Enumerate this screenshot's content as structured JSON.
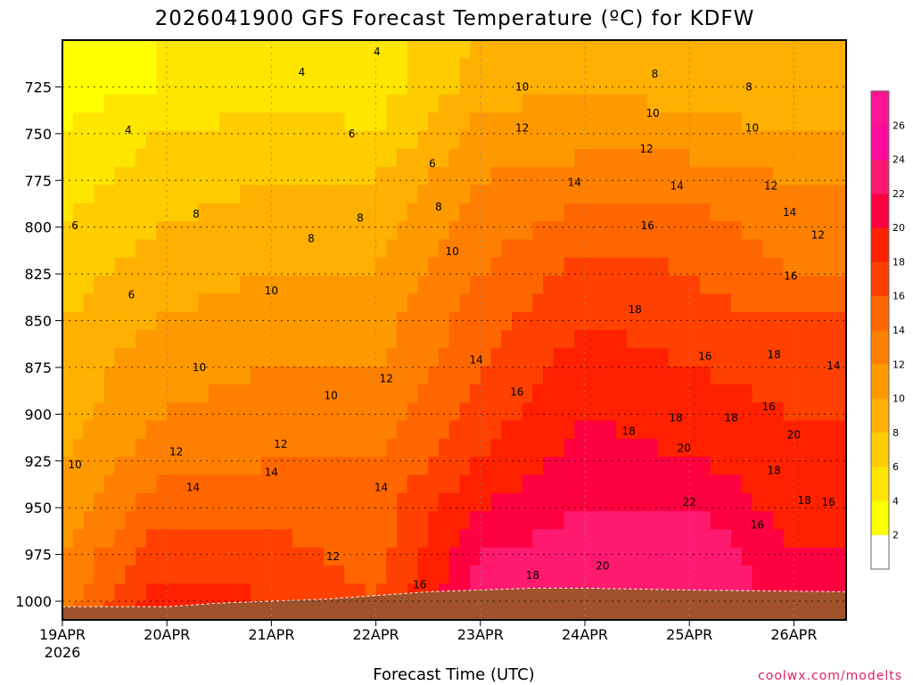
{
  "chart_data": {
    "type": "heatmap",
    "title": "2026041900 GFS Forecast Temperature (ºC) for KDFW",
    "xlabel": "Forecast Time (UTC)",
    "ylabel": "",
    "credit": "coolwx.com/modelts",
    "x_ticks": [
      {
        "label": "19APR",
        "sub": "2026",
        "day": 0
      },
      {
        "label": "20APR",
        "sub": "",
        "day": 1
      },
      {
        "label": "21APR",
        "sub": "",
        "day": 2
      },
      {
        "label": "22APR",
        "sub": "",
        "day": 3
      },
      {
        "label": "23APR",
        "sub": "",
        "day": 4
      },
      {
        "label": "24APR",
        "sub": "",
        "day": 5
      },
      {
        "label": "25APR",
        "sub": "",
        "day": 6
      },
      {
        "label": "26APR",
        "sub": "",
        "day": 7
      }
    ],
    "xlim_days": [
      0,
      7.5
    ],
    "y_ticks": [
      725,
      750,
      775,
      800,
      825,
      850,
      875,
      900,
      925,
      950,
      975,
      1000
    ],
    "ylim_hpa": [
      700,
      1010
    ],
    "y_reversed": true,
    "colorbar": {
      "levels": [
        2,
        4,
        6,
        8,
        10,
        12,
        14,
        16,
        18,
        20,
        22,
        24,
        26
      ],
      "colors": [
        "#ffffff",
        "#ffff00",
        "#ffe600",
        "#ffcc00",
        "#ffb000",
        "#ff9900",
        "#ff8000",
        "#ff6600",
        "#ff4000",
        "#ff2000",
        "#ff0040",
        "#ff1a70",
        "#ff0a9a",
        "#ff1493"
      ]
    },
    "surface_pressure": [
      1003,
      1003,
      1003,
      1001,
      1000,
      999,
      997,
      995,
      994,
      993,
      993,
      994,
      995
    ],
    "surface_days": [
      0,
      0.6,
      1.0,
      1.5,
      2.0,
      2.5,
      3.0,
      3.5,
      4.0,
      4.5,
      5.0,
      6.0,
      7.5
    ],
    "temperature_profile": {
      "pressure_hpa": [
        700,
        725,
        750,
        775,
        800,
        825,
        850,
        875,
        900,
        925,
        950,
        975,
        1000
      ],
      "series": [
        {
          "day": 0.0,
          "values": [
            3,
            3,
            4,
            5,
            6,
            7,
            8,
            9,
            9,
            10,
            11,
            12,
            13
          ]
        },
        {
          "day": 0.9,
          "values": [
            4,
            4,
            6,
            7,
            8,
            9,
            10,
            11,
            12,
            13,
            15,
            17,
            19
          ]
        },
        {
          "day": 2.0,
          "values": [
            4,
            5,
            7,
            8,
            9,
            10,
            11,
            12,
            13,
            14,
            15,
            17,
            18
          ]
        },
        {
          "day": 3.0,
          "values": [
            5,
            5,
            6,
            8,
            9,
            10,
            11,
            12,
            13,
            14,
            15,
            15,
            16
          ]
        },
        {
          "day": 4.0,
          "values": [
            8,
            9,
            11,
            12,
            13,
            14,
            15,
            16,
            17,
            18,
            20,
            22,
            23
          ]
        },
        {
          "day": 5.0,
          "values": [
            9,
            10,
            11,
            13,
            15,
            17,
            18,
            19,
            20,
            21,
            22,
            23,
            23
          ]
        },
        {
          "day": 6.0,
          "values": [
            8,
            9,
            11,
            13,
            15,
            16,
            17,
            18,
            19,
            20,
            22,
            24,
            24
          ]
        },
        {
          "day": 7.0,
          "values": [
            8,
            8,
            10,
            12,
            13,
            14,
            16,
            17,
            18,
            19,
            19,
            20,
            21
          ]
        }
      ]
    },
    "contour_labels": [
      {
        "text": "4",
        "day": 0.63,
        "p": 750
      },
      {
        "text": "4",
        "day": 2.29,
        "p": 719
      },
      {
        "text": "4",
        "day": 3.01,
        "p": 708
      },
      {
        "text": "6",
        "day": 2.77,
        "p": 752
      },
      {
        "text": "6",
        "day": 3.54,
        "p": 768
      },
      {
        "text": "6",
        "day": 0.12,
        "p": 801
      },
      {
        "text": "6",
        "day": 0.66,
        "p": 838
      },
      {
        "text": "8",
        "day": 1.28,
        "p": 795
      },
      {
        "text": "8",
        "day": 2.38,
        "p": 808
      },
      {
        "text": "8",
        "day": 2.85,
        "p": 797
      },
      {
        "text": "8",
        "day": 3.6,
        "p": 791
      },
      {
        "text": "8",
        "day": 5.67,
        "p": 720
      },
      {
        "text": "8",
        "day": 6.57,
        "p": 727
      },
      {
        "text": "10",
        "day": 4.4,
        "p": 727
      },
      {
        "text": "10",
        "day": 5.65,
        "p": 741
      },
      {
        "text": "10",
        "day": 6.6,
        "p": 749
      },
      {
        "text": "10",
        "day": 3.73,
        "p": 815
      },
      {
        "text": "10",
        "day": 2.0,
        "p": 836
      },
      {
        "text": "10",
        "day": 1.31,
        "p": 877
      },
      {
        "text": "10",
        "day": 2.57,
        "p": 892
      },
      {
        "text": "10",
        "day": 0.12,
        "p": 929
      },
      {
        "text": "12",
        "day": 4.4,
        "p": 749
      },
      {
        "text": "12",
        "day": 5.59,
        "p": 760
      },
      {
        "text": "12",
        "day": 6.78,
        "p": 780
      },
      {
        "text": "12",
        "day": 7.23,
        "p": 806
      },
      {
        "text": "12",
        "day": 3.1,
        "p": 883
      },
      {
        "text": "12",
        "day": 2.09,
        "p": 918
      },
      {
        "text": "12",
        "day": 1.09,
        "p": 922
      },
      {
        "text": "12",
        "day": 2.59,
        "p": 978
      },
      {
        "text": "14",
        "day": 4.9,
        "p": 778
      },
      {
        "text": "14",
        "day": 5.88,
        "p": 780
      },
      {
        "text": "14",
        "day": 6.96,
        "p": 794
      },
      {
        "text": "14",
        "day": 3.96,
        "p": 873
      },
      {
        "text": "14",
        "day": 7.38,
        "p": 876
      },
      {
        "text": "14",
        "day": 2.0,
        "p": 933
      },
      {
        "text": "14",
        "day": 1.25,
        "p": 941
      },
      {
        "text": "14",
        "day": 3.05,
        "p": 941
      },
      {
        "text": "16",
        "day": 5.6,
        "p": 801
      },
      {
        "text": "16",
        "day": 6.97,
        "p": 828
      },
      {
        "text": "16",
        "day": 6.15,
        "p": 871
      },
      {
        "text": "16",
        "day": 4.35,
        "p": 890
      },
      {
        "text": "16",
        "day": 6.76,
        "p": 898
      },
      {
        "text": "16",
        "day": 7.33,
        "p": 949
      },
      {
        "text": "16",
        "day": 6.65,
        "p": 961
      },
      {
        "text": "16",
        "day": 3.42,
        "p": 993
      },
      {
        "text": "18",
        "day": 5.48,
        "p": 846
      },
      {
        "text": "18",
        "day": 6.81,
        "p": 870
      },
      {
        "text": "18",
        "day": 5.42,
        "p": 911
      },
      {
        "text": "18",
        "day": 5.87,
        "p": 904
      },
      {
        "text": "18",
        "day": 6.4,
        "p": 904
      },
      {
        "text": "18",
        "day": 6.81,
        "p": 932
      },
      {
        "text": "18",
        "day": 7.1,
        "p": 948
      },
      {
        "text": "18",
        "day": 4.5,
        "p": 988
      },
      {
        "text": "20",
        "day": 5.95,
        "p": 920
      },
      {
        "text": "20",
        "day": 7.0,
        "p": 913
      },
      {
        "text": "20",
        "day": 5.17,
        "p": 983
      },
      {
        "text": "22",
        "day": 6.0,
        "p": 949
      }
    ]
  }
}
